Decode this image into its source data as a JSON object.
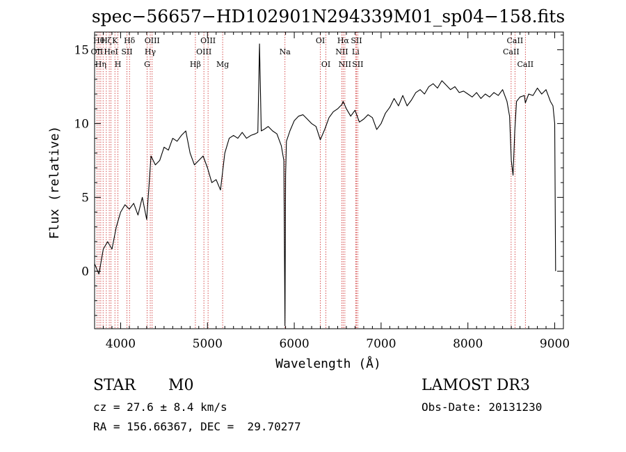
{
  "chart_data": {
    "type": "line",
    "title": "spec−56657−HD102901N294339M01_sp04−158.fits",
    "xlabel": "Wavelength (Å)",
    "ylabel": "Flux (relative)",
    "xlim": [
      3700,
      9100
    ],
    "ylim": [
      -3.9,
      16.2
    ],
    "xticks": [
      4000,
      5000,
      6000,
      7000,
      8000,
      9000
    ],
    "yticks": [
      0,
      5,
      10,
      15
    ],
    "series": [
      {
        "name": "spectrum",
        "x": [
          3700,
          3750,
          3800,
          3850,
          3900,
          3950,
          4000,
          4050,
          4100,
          4150,
          4200,
          4250,
          4300,
          4350,
          4400,
          4450,
          4500,
          4550,
          4600,
          4650,
          4700,
          4750,
          4800,
          4850,
          4900,
          4950,
          5000,
          5050,
          5100,
          5150,
          5200,
          5250,
          5300,
          5350,
          5400,
          5450,
          5500,
          5550,
          5580,
          5600,
          5620,
          5650,
          5700,
          5750,
          5800,
          5850,
          5880,
          5893,
          5900,
          5910,
          5950,
          6000,
          6050,
          6100,
          6150,
          6200,
          6250,
          6300,
          6350,
          6400,
          6450,
          6500,
          6550,
          6563,
          6600,
          6650,
          6700,
          6750,
          6800,
          6850,
          6900,
          6950,
          7000,
          7050,
          7100,
          7150,
          7200,
          7250,
          7300,
          7350,
          7400,
          7450,
          7500,
          7550,
          7600,
          7650,
          7700,
          7750,
          7800,
          7850,
          7900,
          7950,
          8000,
          8050,
          8100,
          8150,
          8200,
          8250,
          8300,
          8350,
          8400,
          8450,
          8480,
          8500,
          8520,
          8540,
          8560,
          8600,
          8650,
          8662,
          8700,
          8750,
          8800,
          8850,
          8900,
          8950,
          8980,
          9000,
          9010
        ],
        "y": [
          0.5,
          -0.2,
          1.5,
          2.0,
          1.5,
          3.0,
          4.0,
          4.5,
          4.2,
          4.6,
          3.8,
          5.0,
          3.5,
          7.8,
          7.2,
          7.5,
          8.4,
          8.2,
          9.0,
          8.8,
          9.2,
          9.5,
          8.0,
          7.2,
          7.5,
          7.8,
          7.0,
          6.0,
          6.2,
          5.5,
          8.0,
          9.0,
          9.2,
          9.0,
          9.4,
          9.0,
          9.2,
          9.3,
          9.4,
          15.4,
          9.5,
          9.6,
          9.8,
          9.5,
          9.3,
          8.5,
          7.5,
          -3.7,
          6.5,
          8.8,
          9.5,
          10.2,
          10.5,
          10.6,
          10.3,
          10.0,
          9.8,
          8.9,
          9.6,
          10.4,
          10.8,
          11.0,
          11.3,
          11.5,
          11.0,
          10.5,
          10.9,
          10.1,
          10.3,
          10.6,
          10.4,
          9.6,
          10.0,
          10.7,
          11.1,
          11.7,
          11.2,
          11.9,
          11.2,
          11.6,
          12.1,
          12.3,
          12.0,
          12.5,
          12.7,
          12.4,
          12.9,
          12.6,
          12.3,
          12.5,
          12.1,
          12.2,
          12.0,
          11.8,
          12.1,
          11.7,
          12.0,
          11.8,
          12.1,
          11.9,
          12.3,
          11.5,
          10.5,
          7.5,
          6.5,
          9.5,
          11.5,
          11.8,
          11.9,
          11.4,
          12.0,
          11.9,
          12.4,
          12.0,
          12.3,
          11.5,
          11.2,
          10.0,
          0.0
        ]
      }
    ],
    "line_markers": [
      {
        "x": 3727,
        "label": "OII",
        "row": 2
      },
      {
        "x": 3750,
        "label": "Hθ",
        "row": 1
      },
      {
        "x": 3771,
        "label": "Hη",
        "row": 3
      },
      {
        "x": 3798,
        "label": "",
        "row": 0
      },
      {
        "x": 3835,
        "label": "Hζ",
        "row": 1
      },
      {
        "x": 3869,
        "label": "",
        "row": 0
      },
      {
        "x": 3889,
        "label": "HeI",
        "row": 2
      },
      {
        "x": 3934,
        "label": "K",
        "row": 1
      },
      {
        "x": 3969,
        "label": "H",
        "row": 3
      },
      {
        "x": 4072,
        "label": "SII",
        "row": 2
      },
      {
        "x": 4102,
        "label": "Hδ",
        "row": 1
      },
      {
        "x": 4305,
        "label": "G",
        "row": 3
      },
      {
        "x": 4341,
        "label": "Hγ",
        "row": 2
      },
      {
        "x": 4363,
        "label": "OIII",
        "row": 1
      },
      {
        "x": 4861,
        "label": "Hβ",
        "row": 3
      },
      {
        "x": 4959,
        "label": "OIII",
        "row": 2
      },
      {
        "x": 5007,
        "label": "OIII",
        "row": 1
      },
      {
        "x": 5175,
        "label": "Mg",
        "row": 3
      },
      {
        "x": 5893,
        "label": "Na",
        "row": 2
      },
      {
        "x": 6300,
        "label": "OI",
        "row": 1
      },
      {
        "x": 6364,
        "label": "OI",
        "row": 3
      },
      {
        "x": 6548,
        "label": "NII",
        "row": 2
      },
      {
        "x": 6563,
        "label": "Hα",
        "row": 1
      },
      {
        "x": 6583,
        "label": "NII",
        "row": 3
      },
      {
        "x": 6707,
        "label": "Li",
        "row": 2
      },
      {
        "x": 6716,
        "label": "SII",
        "row": 1
      },
      {
        "x": 6731,
        "label": "SII",
        "row": 3
      },
      {
        "x": 8498,
        "label": "CaII",
        "row": 2
      },
      {
        "x": 8542,
        "label": "CaII",
        "row": 1
      },
      {
        "x": 8662,
        "label": "CaII",
        "row": 3
      }
    ]
  },
  "info": {
    "object_class": "STAR",
    "subclass": "M0",
    "survey": "LAMOST DR3",
    "cz": "cz = 27.6 ± 8.4 km/s",
    "obs_date": "Obs-Date: 20131230",
    "coords": "RA = 156.66367, DEC =  29.70277"
  },
  "colors": {
    "spectrum": "#000000",
    "marker_line": "#cc2222",
    "axes": "#000000"
  }
}
